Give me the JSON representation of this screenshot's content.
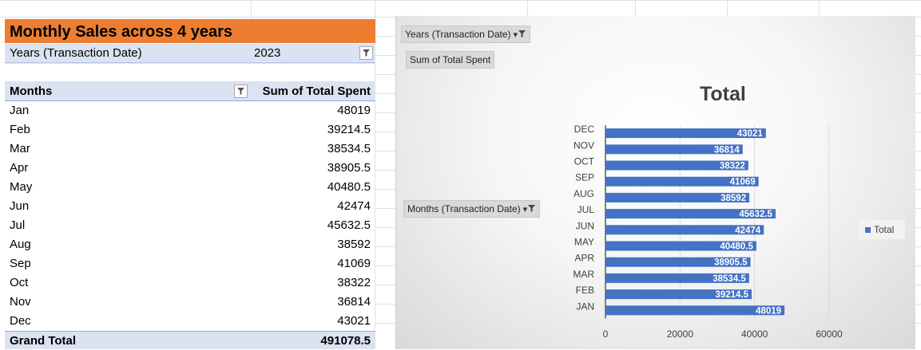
{
  "pivot": {
    "title": "Monthly Sales across 4 years",
    "filter_label": "Years (Transaction Date)",
    "filter_value": "2023",
    "col_months": "Months",
    "col_total": "Sum of Total Spent",
    "rows": [
      {
        "month": "Jan",
        "value": "48019"
      },
      {
        "month": "Feb",
        "value": "39214.5"
      },
      {
        "month": "Mar",
        "value": "38534.5"
      },
      {
        "month": "Apr",
        "value": "38905.5"
      },
      {
        "month": "May",
        "value": "40480.5"
      },
      {
        "month": "Jun",
        "value": "42474"
      },
      {
        "month": "Jul",
        "value": "45632.5"
      },
      {
        "month": "Aug",
        "value": "38592"
      },
      {
        "month": "Sep",
        "value": "41069"
      },
      {
        "month": "Oct",
        "value": "38322"
      },
      {
        "month": "Nov",
        "value": "36814"
      },
      {
        "month": "Dec",
        "value": "43021"
      }
    ],
    "grand_total_label": "Grand Total",
    "grand_total_value": "491078.5",
    "header_fill": "#dbe3f3",
    "title_fill": "#ed7d31"
  },
  "chart": {
    "field_year": "Years (Transaction Date)",
    "field_values": "Sum of Total Spent",
    "field_months": "Months (Transaction Date)",
    "legend_label": "Total",
    "filter_icon": "funnel-icon"
  },
  "chart_data": {
    "type": "bar",
    "orientation": "horizontal",
    "title": "Total",
    "categories": [
      "JAN",
      "FEB",
      "MAR",
      "APR",
      "MAY",
      "JUN",
      "JUL",
      "AUG",
      "SEP",
      "OCT",
      "NOV",
      "DEC"
    ],
    "series": [
      {
        "name": "Total",
        "values": [
          48019,
          39214.5,
          38534.5,
          38905.5,
          40480.5,
          42474,
          45632.5,
          38592,
          41069,
          38322,
          36814,
          43021
        ],
        "color": "#4472c4"
      }
    ],
    "xlim": [
      0,
      60000
    ],
    "xticks": [
      0,
      20000,
      40000,
      60000
    ],
    "data_labels": true,
    "gridlines": true,
    "legend_position": "right"
  }
}
